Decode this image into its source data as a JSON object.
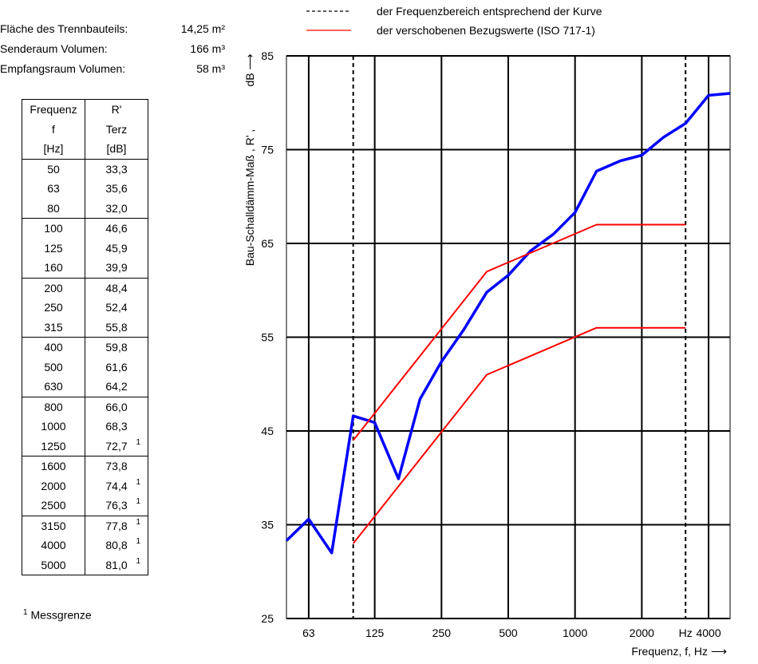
{
  "info": {
    "rows": [
      {
        "label": "Fläche des Trennbauteils:",
        "value": "14,25 m²"
      },
      {
        "label": "Senderaum Volumen:",
        "value": "166 m³"
      },
      {
        "label": "Empfangsraum Volumen:",
        "value": "58 m³"
      }
    ]
  },
  "table": {
    "header": [
      [
        "Frequenz",
        "R'"
      ],
      [
        "f",
        "Terz"
      ],
      [
        "[Hz]",
        "[dB]"
      ]
    ],
    "rows": [
      {
        "f": "50",
        "r": "33,3",
        "note": ""
      },
      {
        "f": "63",
        "r": "35,6",
        "note": ""
      },
      {
        "f": "80",
        "r": "32,0",
        "note": ""
      },
      {
        "f": "100",
        "r": "46,6",
        "note": ""
      },
      {
        "f": "125",
        "r": "45,9",
        "note": ""
      },
      {
        "f": "160",
        "r": "39,9",
        "note": ""
      },
      {
        "f": "200",
        "r": "48,4",
        "note": ""
      },
      {
        "f": "250",
        "r": "52,4",
        "note": ""
      },
      {
        "f": "315",
        "r": "55,8",
        "note": ""
      },
      {
        "f": "400",
        "r": "59,8",
        "note": ""
      },
      {
        "f": "500",
        "r": "61,6",
        "note": ""
      },
      {
        "f": "630",
        "r": "64,2",
        "note": ""
      },
      {
        "f": "800",
        "r": "66,0",
        "note": ""
      },
      {
        "f": "1000",
        "r": "68,3",
        "note": ""
      },
      {
        "f": "1250",
        "r": "72,7",
        "note": "1"
      },
      {
        "f": "1600",
        "r": "73,8",
        "note": ""
      },
      {
        "f": "2000",
        "r": "74,4",
        "note": "1"
      },
      {
        "f": "2500",
        "r": "76,3",
        "note": "1"
      },
      {
        "f": "3150",
        "r": "77,8",
        "note": "1"
      },
      {
        "f": "4000",
        "r": "80,8",
        "note": "1"
      },
      {
        "f": "5000",
        "r": "81,0",
        "note": "1"
      }
    ]
  },
  "footnote": {
    "mark": "1",
    "text": "Messgrenze"
  },
  "legend": [
    {
      "symbol": "dashed",
      "color": "#000000",
      "label": "der Frequenzbereich entsprechend der Kurve"
    },
    {
      "symbol": "solid",
      "color": "#ff0000",
      "label": "der verschobenen Bezugswerte (ISO 717-1)"
    }
  ],
  "chart_data": {
    "type": "line",
    "xscale": "log (third-octave bands)",
    "ylabel": "Bau-Schalldämm-Maß , R' ,",
    "yunit": "dB",
    "xlabel": "Frequenz, f, Hz",
    "xunit": "Hz",
    "ylim": [
      25,
      85
    ],
    "yticks": [
      25,
      35,
      45,
      55,
      65,
      75,
      85
    ],
    "xlim": [
      50,
      5000
    ],
    "xtick_labels": [
      {
        "value": 63,
        "label": "63"
      },
      {
        "value": 125,
        "label": "125"
      },
      {
        "value": 250,
        "label": "250"
      },
      {
        "value": 500,
        "label": "500"
      },
      {
        "value": 1000,
        "label": "1000"
      },
      {
        "value": 2000,
        "label": "2000"
      },
      {
        "value": 4000,
        "label": "4000"
      }
    ],
    "vertical_lines": [
      63,
      125,
      250,
      500,
      1000,
      2000,
      4000
    ],
    "dashed_lines": [
      100,
      3150
    ],
    "grid": true,
    "series": [
      {
        "name": "R'",
        "color": "#0000ff",
        "x": [
          50,
          63,
          80,
          100,
          125,
          160,
          200,
          250,
          315,
          400,
          500,
          630,
          800,
          1000,
          1250,
          1600,
          2000,
          2500,
          3150,
          4000,
          5000
        ],
        "y": [
          33.3,
          35.6,
          32.0,
          46.6,
          45.9,
          39.9,
          48.4,
          52.4,
          55.8,
          59.8,
          61.6,
          64.2,
          66.0,
          68.3,
          72.7,
          73.8,
          74.4,
          76.3,
          77.8,
          80.8,
          81.0
        ]
      },
      {
        "name": "",
        "color": "#ff0000",
        "x": [
          100,
          400,
          1250,
          3150
        ],
        "y": [
          44,
          62,
          67,
          67
        ]
      },
      {
        "name": "",
        "color": "#ff0000",
        "x": [
          100,
          400,
          1250,
          3150
        ],
        "y": [
          33,
          51,
          56,
          56
        ]
      }
    ]
  }
}
